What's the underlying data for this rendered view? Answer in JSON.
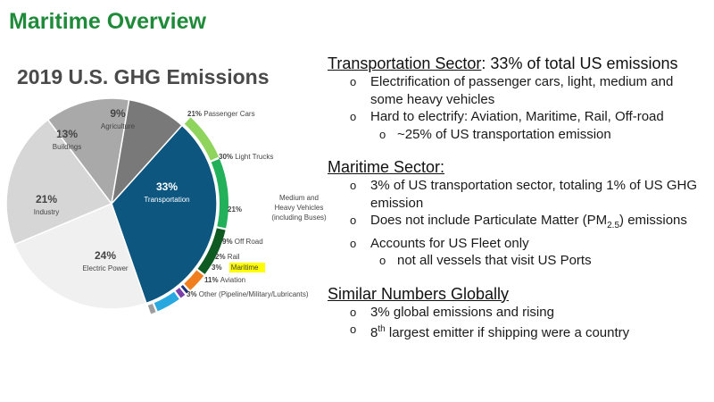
{
  "slide": {
    "title": "Maritime Overview"
  },
  "chart_data": {
    "type": "pie",
    "title": "2019 U.S. GHG Emissions",
    "slices": [
      {
        "label": "Transportation",
        "value": 33,
        "value_label": "33%",
        "color": "#0c5680"
      },
      {
        "label": "Electric Power",
        "value": 24,
        "value_label": "24%",
        "color": "#f0f0f0"
      },
      {
        "label": "Industry",
        "value": 21,
        "value_label": "21%",
        "color": "#d6d6d6"
      },
      {
        "label": "Buildings",
        "value": 13,
        "value_label": "13%",
        "color": "#a9a9a9"
      },
      {
        "label": "Agriculture",
        "value": 9,
        "value_label": "9%",
        "color": "#797979"
      }
    ],
    "breakdown": {
      "of": "Transportation",
      "segments": [
        {
          "label": "Passenger Cars",
          "value": 21,
          "value_label": "21%",
          "color": "#8fd45d"
        },
        {
          "label": "Light Trucks",
          "value": 30,
          "value_label": "30%",
          "color": "#22b05a"
        },
        {
          "label": "Medium and Heavy Vehicles (including Buses)",
          "label_lines": [
            "Medium and",
            "Heavy Vehicles",
            "(including Buses)"
          ],
          "value": 21,
          "value_label": "21%",
          "color": "#0f5a22"
        },
        {
          "label": "Off Road",
          "value": 9,
          "value_label": "9%",
          "color": "#f07d1e"
        },
        {
          "label": "Rail",
          "value": 2,
          "value_label": "2%",
          "color": "#1b2f7a"
        },
        {
          "label": "Maritime",
          "value": 3,
          "value_label": "3%",
          "color": "#7a3fa8",
          "highlight": "#ffff00"
        },
        {
          "label": "Aviation",
          "value": 11,
          "value_label": "11%",
          "color": "#29a8e0"
        },
        {
          "label": "Other (Pipeline/Military/Lubricants)",
          "value": 3,
          "value_label": "3%",
          "color": "#9e9e9e"
        }
      ]
    }
  },
  "sections": {
    "transport": {
      "heading_underlined": "Transportation Sector",
      "heading_rest": ": 33% of total US emissions",
      "bullets": [
        "Electrification of passenger cars, light, medium and some heavy vehicles",
        "Hard to electrify: Aviation, Maritime, Rail, Off-road"
      ],
      "sub_bullet": "~25% of US transportation emission"
    },
    "maritime": {
      "heading": "Maritime Sector:",
      "bullet1": "3% of US transportation sector, totaling 1% of US GHG emission",
      "bullet2_before": "Does not include Particulate Matter (PM",
      "bullet2_sub": "2.5",
      "bullet2_after": ") emissions",
      "bullet3": "Accounts for US Fleet only",
      "sub_bullet": "not all vessels that visit US Ports"
    },
    "global": {
      "heading": "Similar Numbers Globally",
      "bullet1": "3% global emissions and rising",
      "bullet2_num": "8",
      "bullet2_sup": "th",
      "bullet2_rest": " largest emitter if shipping were a country"
    }
  }
}
